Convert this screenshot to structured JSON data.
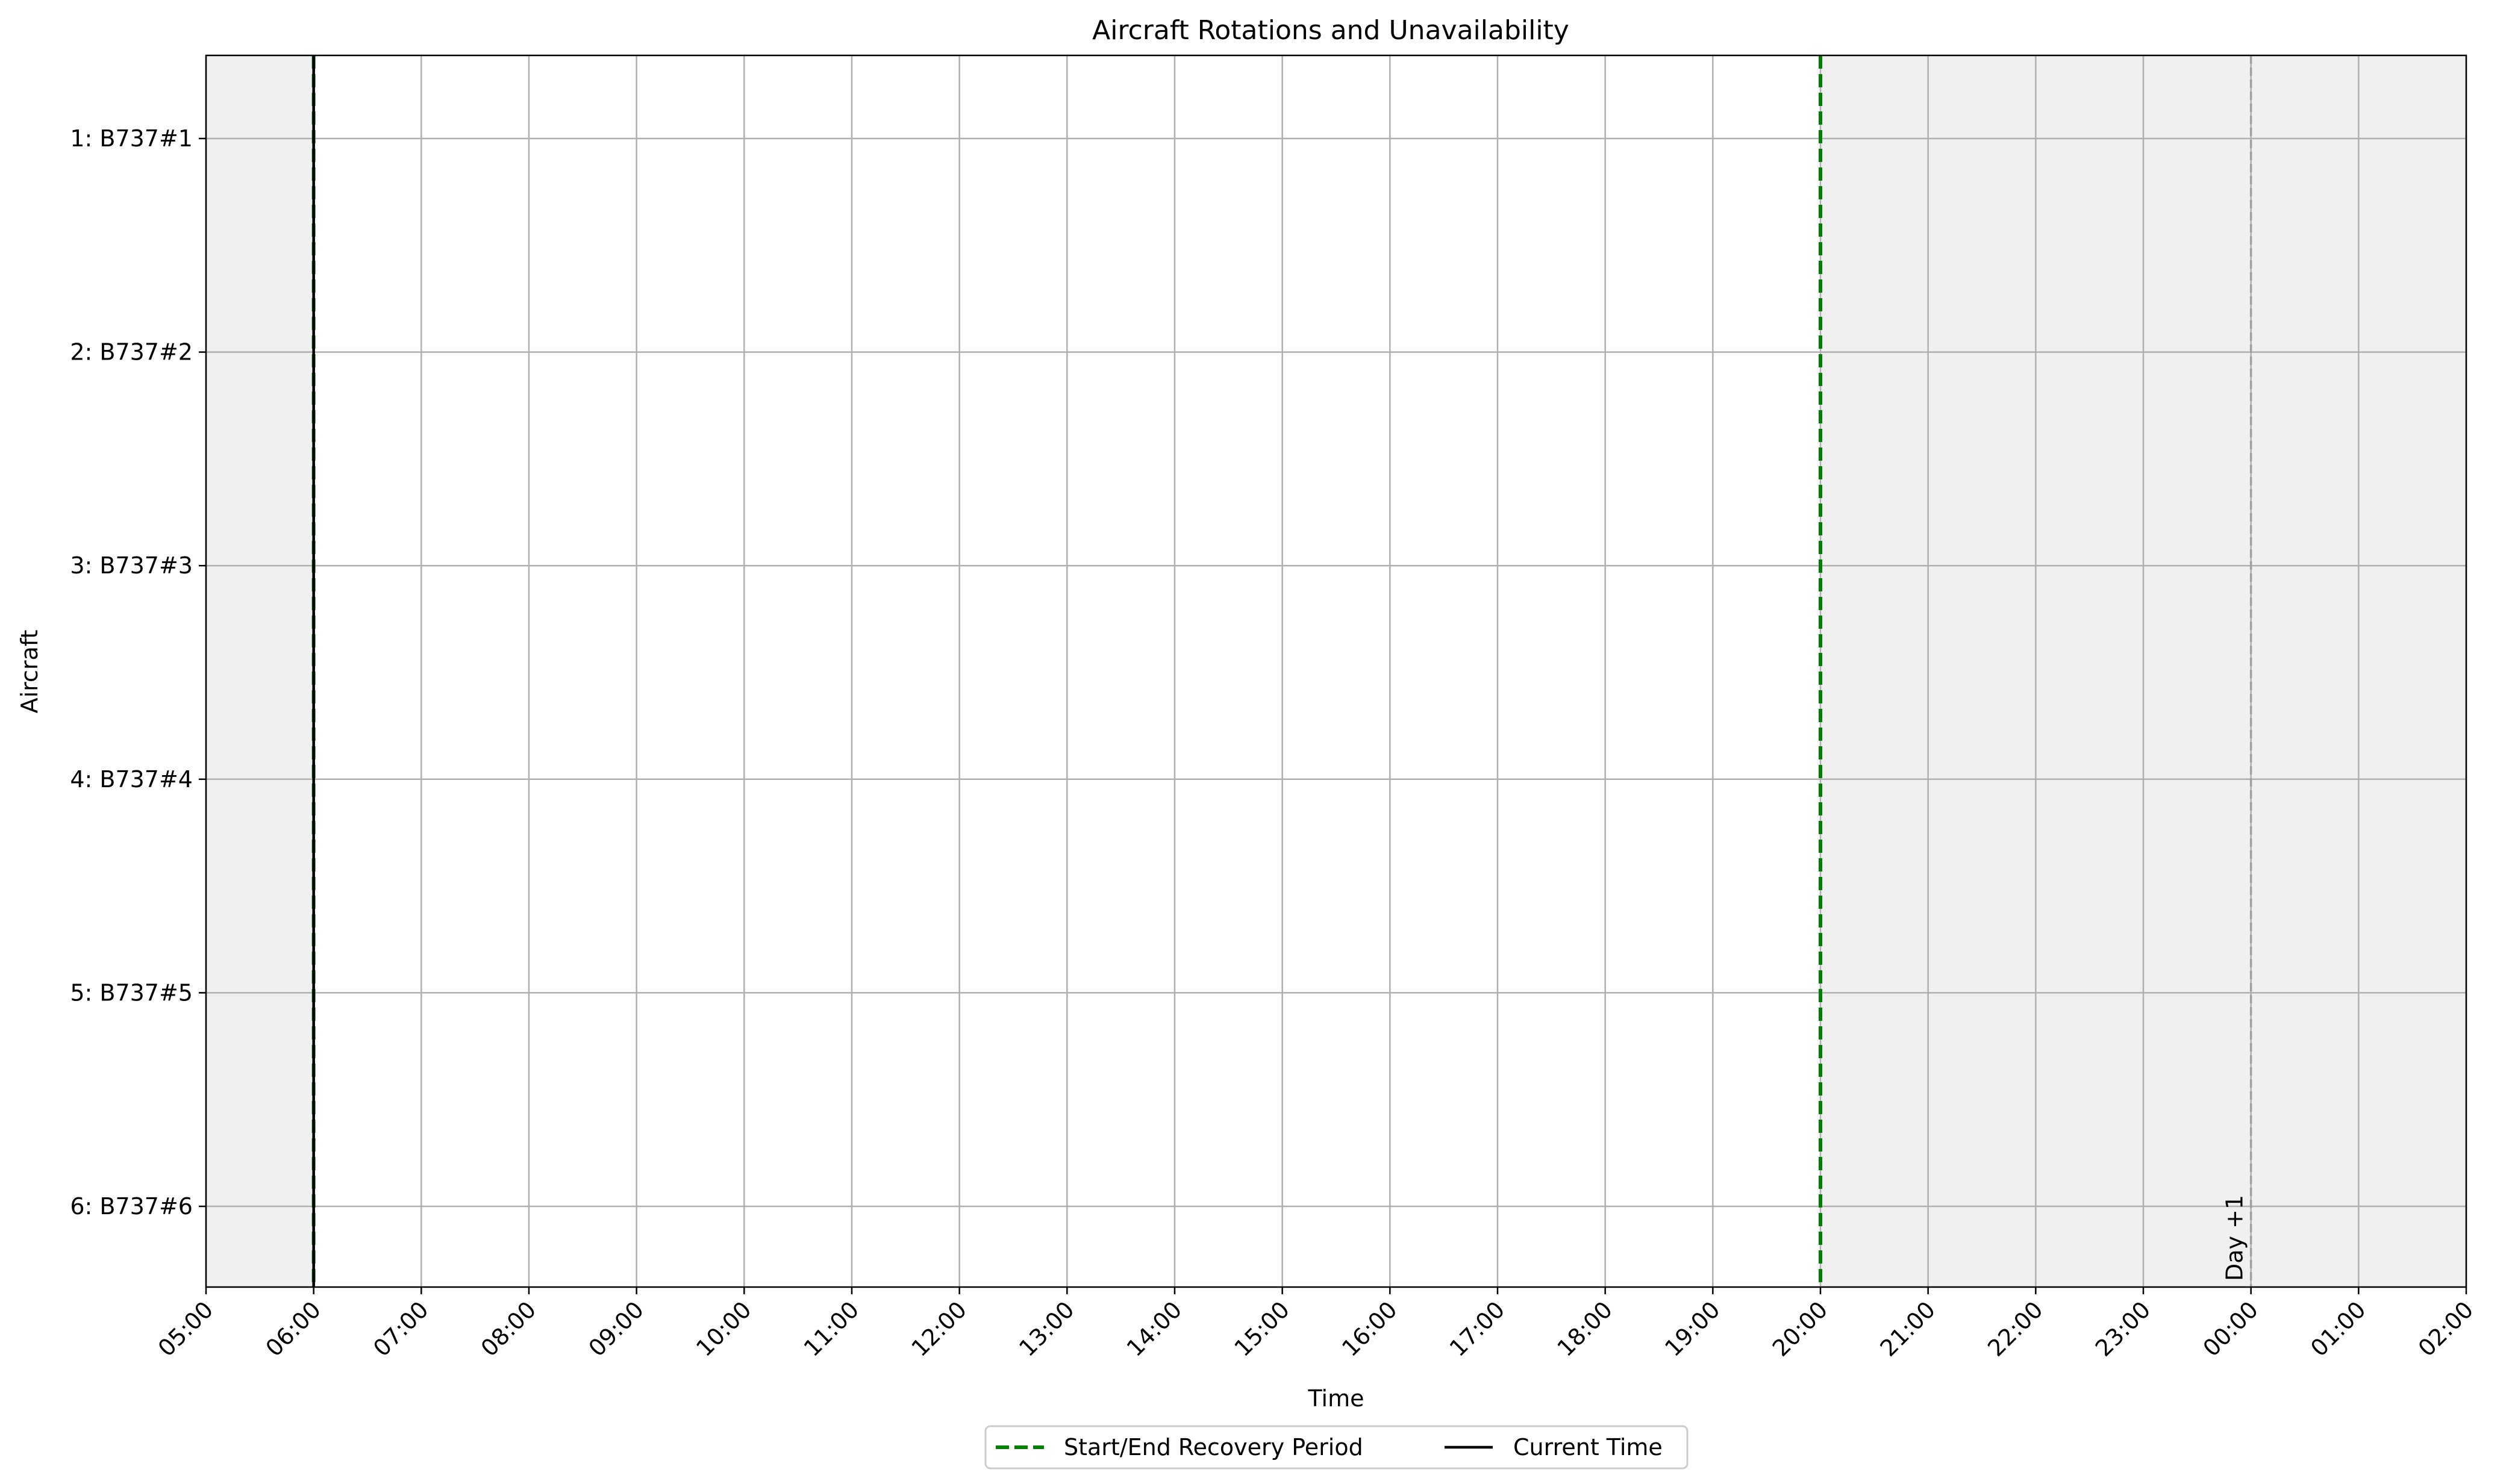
{
  "chart_data": {
    "type": "gantt",
    "title": "Aircraft Rotations and Unavailability",
    "xlabel": "Time",
    "ylabel": "Aircraft",
    "x_ticks": [
      "05:00",
      "06:00",
      "07:00",
      "08:00",
      "09:00",
      "10:00",
      "11:00",
      "12:00",
      "13:00",
      "14:00",
      "15:00",
      "16:00",
      "17:00",
      "18:00",
      "19:00",
      "20:00",
      "21:00",
      "22:00",
      "23:00",
      "00:00",
      "01:00",
      "02:00"
    ],
    "x_range": [
      "05:00",
      "02:00 (Day +1)"
    ],
    "aircraft": [
      "1: B737#1",
      "2: B737#2",
      "3: B737#3",
      "4: B737#4",
      "5: B737#5",
      "6: B737#6"
    ],
    "recovery_period": {
      "start": "06:00",
      "end": "20:00",
      "color": "#008000"
    },
    "outside_recovery_shading": "#f0f0f0",
    "current_time": {
      "time": "06:00",
      "color": "#000000"
    },
    "day_boundary": {
      "time": "00:00",
      "label": "Day +1",
      "color": "#a0a0a0"
    },
    "grid": true,
    "legend_position": "bottom-center",
    "legend": [
      {
        "label": "Start/End Recovery Period",
        "style": "dashed",
        "color": "#008000"
      },
      {
        "label": "Current Time",
        "style": "solid",
        "color": "#000000"
      }
    ],
    "flights": []
  }
}
